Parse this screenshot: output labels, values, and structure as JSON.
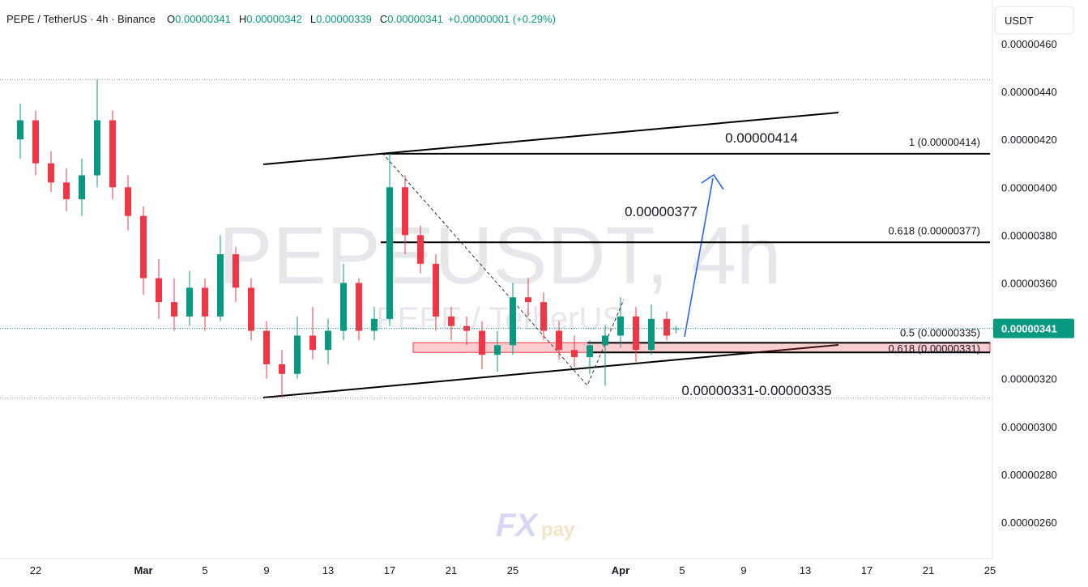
{
  "header": {
    "symbol": "PEPE / TetherUS · 4h · Binance",
    "ohlc": [
      {
        "key": "O",
        "value": "0.00000341"
      },
      {
        "key": "H",
        "value": "0.00000342"
      },
      {
        "key": "L",
        "value": "0.00000339"
      },
      {
        "key": "C",
        "value": "0.00000341"
      }
    ],
    "change": "+0.00000001 (+0.29%)"
  },
  "watermark": {
    "title": "PEPEUSDT, 4h",
    "subtitle": "PEPE / TetherUS",
    "logo_a": "FX",
    "logo_b": "pay"
  },
  "currency": "USDT",
  "chart_data": {
    "type": "candlestick",
    "x": [
      -1,
      0,
      1,
      2,
      3,
      4,
      5,
      6,
      7,
      8,
      9,
      10,
      11,
      12,
      13,
      14,
      15,
      16,
      17,
      18,
      19,
      20,
      21,
      22,
      23,
      24,
      25,
      26,
      27,
      28,
      29,
      30,
      31,
      32,
      33,
      34,
      35,
      36,
      37,
      38,
      39,
      40,
      41,
      41.6
    ],
    "open": [
      4.2e-06,
      4.28e-06,
      4.1e-06,
      4.02e-06,
      3.95e-06,
      4.05e-06,
      4.28e-06,
      4e-06,
      3.88e-06,
      3.62e-06,
      3.52e-06,
      3.46e-06,
      3.58e-06,
      3.46e-06,
      3.72e-06,
      3.58e-06,
      3.4e-06,
      3.26e-06,
      3.22e-06,
      3.38e-06,
      3.32e-06,
      3.4e-06,
      3.6e-06,
      3.4e-06,
      3.45e-06,
      4e-06,
      3.8e-06,
      3.68e-06,
      3.46e-06,
      3.42e-06,
      3.4e-06,
      3.3e-06,
      3.34e-06,
      3.54e-06,
      3.52e-06,
      3.4e-06,
      3.32e-06,
      3.29e-06,
      3.34e-06,
      3.38e-06,
      3.46e-06,
      3.32e-06,
      3.45e-06,
      3.41e-06
    ],
    "high": [
      4.35e-06,
      4.32e-06,
      4.15e-06,
      4.08e-06,
      4.12e-06,
      4.45e-06,
      4.32e-06,
      4.05e-06,
      3.92e-06,
      3.7e-06,
      3.62e-06,
      3.65e-06,
      3.62e-06,
      3.8e-06,
      3.75e-06,
      3.62e-06,
      3.44e-06,
      3.32e-06,
      3.46e-06,
      3.5e-06,
      3.45e-06,
      3.68e-06,
      3.62e-06,
      3.5e-06,
      4.14e-06,
      4.05e-06,
      3.84e-06,
      3.72e-06,
      3.5e-06,
      3.46e-06,
      3.44e-06,
      3.4e-06,
      3.6e-06,
      3.62e-06,
      3.56e-06,
      3.44e-06,
      3.38e-06,
      3.36e-06,
      3.42e-06,
      3.54e-06,
      3.5e-06,
      3.51e-06,
      3.48e-06,
      3.42e-06
    ],
    "low": [
      4.12e-06,
      4.05e-06,
      3.98e-06,
      3.9e-06,
      3.88e-06,
      4e-06,
      3.95e-06,
      3.82e-06,
      3.55e-06,
      3.45e-06,
      3.4e-06,
      3.42e-06,
      3.4e-06,
      3.44e-06,
      3.52e-06,
      3.36e-06,
      3.2e-06,
      3.12e-06,
      3.2e-06,
      3.28e-06,
      3.26e-06,
      3.36e-06,
      3.36e-06,
      3.36e-06,
      3.42e-06,
      3.72e-06,
      3.64e-06,
      3.4e-06,
      3.36e-06,
      3.34e-06,
      3.24e-06,
      3.23e-06,
      3.3e-06,
      3.46e-06,
      3.36e-06,
      3.28e-06,
      3.25e-06,
      3.22e-06,
      3.17e-06,
      3.33e-06,
      3.27e-06,
      3.3e-06,
      3.36e-06,
      3.39e-06
    ],
    "close": [
      4.28e-06,
      4.1e-06,
      4.02e-06,
      3.95e-06,
      4.05e-06,
      4.28e-06,
      4e-06,
      3.88e-06,
      3.62e-06,
      3.52e-06,
      3.46e-06,
      3.58e-06,
      3.46e-06,
      3.72e-06,
      3.58e-06,
      3.4e-06,
      3.26e-06,
      3.22e-06,
      3.38e-06,
      3.32e-06,
      3.4e-06,
      3.6e-06,
      3.4e-06,
      3.45e-06,
      4e-06,
      3.8e-06,
      3.68e-06,
      3.46e-06,
      3.42e-06,
      3.4e-06,
      3.3e-06,
      3.34e-06,
      3.54e-06,
      3.52e-06,
      3.4e-06,
      3.32e-06,
      3.29e-06,
      3.34e-06,
      3.38e-06,
      3.46e-06,
      3.32e-06,
      3.45e-06,
      3.38e-06,
      3.41e-06
    ],
    "up_color": "#089981",
    "down_color": "#f23645",
    "xlim": [
      -2.316,
      62.158
    ],
    "xticks": [
      {
        "value": 0,
        "label": "22"
      },
      {
        "value": 7,
        "label": "Mar"
      },
      {
        "value": 11,
        "label": "5"
      },
      {
        "value": 15,
        "label": "9"
      },
      {
        "value": 19,
        "label": "13"
      },
      {
        "value": 23,
        "label": "17"
      },
      {
        "value": 27,
        "label": "21"
      },
      {
        "value": 31,
        "label": "25"
      },
      {
        "value": 38,
        "label": "Apr"
      },
      {
        "value": 42,
        "label": "5"
      },
      {
        "value": 46,
        "label": "9"
      },
      {
        "value": 50,
        "label": "13"
      },
      {
        "value": 54,
        "label": "17"
      },
      {
        "value": 58,
        "label": "21"
      },
      {
        "value": 62,
        "label": "25"
      }
    ],
    "ylim": [
      2.4477e-06,
      4.7827e-06
    ],
    "yticks": [
      {
        "value": 2.6e-06,
        "label": "0.00000260"
      },
      {
        "value": 2.8e-06,
        "label": "0.00000280"
      },
      {
        "value": 3e-06,
        "label": "0.00000300"
      },
      {
        "value": 3.2e-06,
        "label": "0.00000320"
      },
      {
        "value": 3.4e-06,
        "label": "0.00000340"
      },
      {
        "value": 3.6e-06,
        "label": "0.00000360"
      },
      {
        "value": 3.8e-06,
        "label": "0.00000380"
      },
      {
        "value": 4e-06,
        "label": "0.00000400"
      },
      {
        "value": 4.2e-06,
        "label": "0.00000420"
      },
      {
        "value": 4.4e-06,
        "label": "0.00000440"
      },
      {
        "value": 4.6e-06,
        "label": "0.00000460"
      }
    ],
    "grid": false,
    "last_price": 3.41e-06,
    "fib_levels": [
      {
        "value": 4.14e-06,
        "label": "1 (0.00000414)"
      },
      {
        "value": 3.77e-06,
        "label": "0.618 (0.00000377)"
      },
      {
        "value": 3.35e-06,
        "label": "0.5 (0.00000335)"
      },
      {
        "value": 3.31e-06,
        "label": "0.618 (0.00000331)"
      }
    ],
    "annotations": [
      "0.00000414",
      "0.00000377",
      "0.00000331-0.00000335"
    ]
  }
}
